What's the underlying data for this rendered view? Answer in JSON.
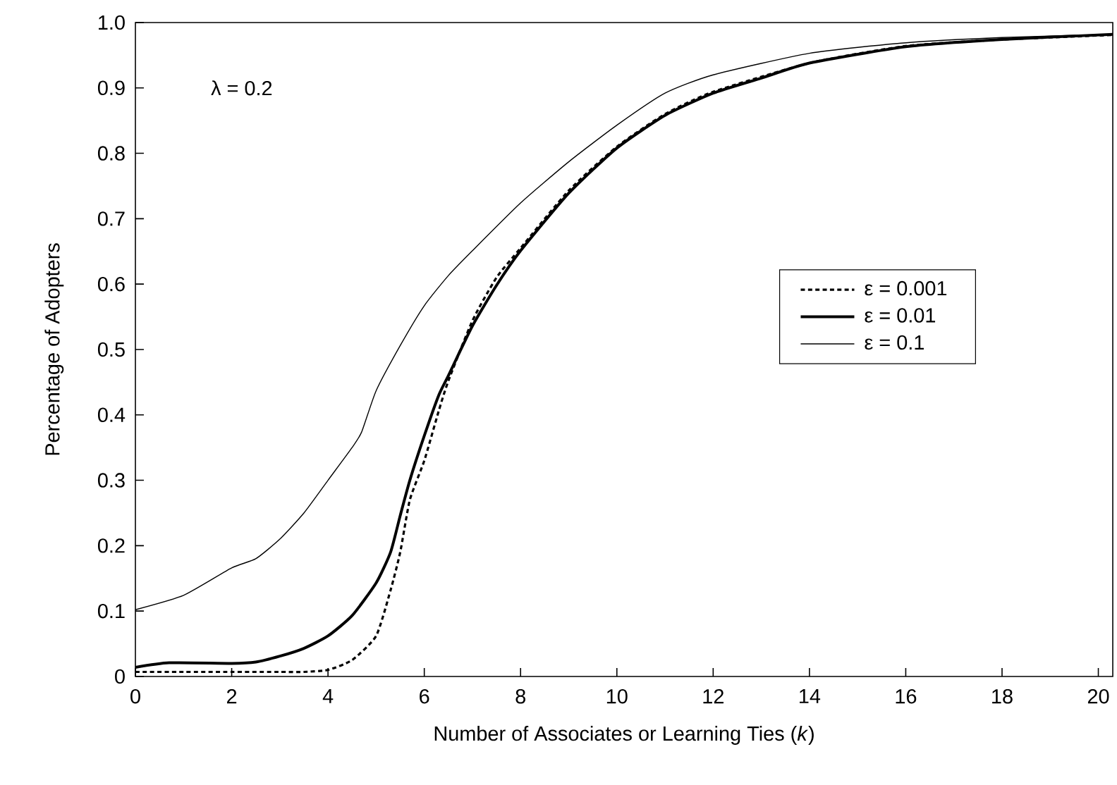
{
  "chart_data": {
    "type": "line",
    "xlabel": "Number of Associates or Learning Ties (*k*)",
    "ylabel": "Percentage of Adopters",
    "annotations": [
      "λ = 0.2"
    ],
    "xlim": [
      0,
      20.3
    ],
    "ylim": [
      0,
      1.0
    ],
    "xticks": [
      0,
      2,
      4,
      6,
      8,
      10,
      12,
      14,
      16,
      18,
      20
    ],
    "yticks": [
      0,
      0.1,
      0.2,
      0.3,
      0.4,
      0.5,
      0.6,
      0.7,
      0.8,
      0.9,
      {
        "value": 1.0,
        "label": "1.0"
      }
    ],
    "grid": false,
    "legend": "right",
    "series": [
      {
        "name": "ε = 0.001",
        "color": "#000000",
        "line_style": "dashed",
        "x": [
          0,
          1,
          2,
          3,
          3.5,
          4,
          4.5,
          5,
          5.3,
          5.5,
          5.7,
          6,
          6.3,
          6.5,
          7,
          7.5,
          8,
          9,
          10,
          11,
          12,
          14,
          16,
          18,
          20.3
        ],
        "values": [
          0.007,
          0.007,
          0.007,
          0.007,
          0.007,
          0.01,
          0.025,
          0.062,
          0.132,
          0.19,
          0.27,
          0.33,
          0.406,
          0.452,
          0.544,
          0.61,
          0.655,
          0.743,
          0.81,
          0.86,
          0.894,
          0.938,
          0.964,
          0.974,
          0.981
        ]
      },
      {
        "name": "ε = 0.01",
        "color": "#000000",
        "line_style": "solid",
        "x": [
          0,
          0.7,
          2,
          2.5,
          3,
          3.5,
          4,
          4.5,
          5,
          5.3,
          5.5,
          5.7,
          6,
          6.3,
          6.5,
          7,
          7.5,
          8,
          9,
          10,
          11,
          12,
          13,
          14,
          16,
          18,
          20.3
        ],
        "values": [
          0.014,
          0.021,
          0.02,
          0.022,
          0.031,
          0.043,
          0.062,
          0.093,
          0.143,
          0.19,
          0.246,
          0.3,
          0.368,
          0.43,
          0.46,
          0.536,
          0.598,
          0.651,
          0.739,
          0.808,
          0.858,
          0.892,
          0.915,
          0.938,
          0.963,
          0.974,
          0.982
        ]
      },
      {
        "name": "ε = 0.1",
        "color": "#000000",
        "line_style": "solid",
        "x": [
          0,
          1,
          2,
          2.5,
          3,
          3.5,
          4,
          4.5,
          4.7,
          5,
          5.5,
          6,
          6.5,
          7,
          8,
          9,
          10,
          11,
          12,
          14,
          16,
          18,
          20.3
        ],
        "values": [
          0.102,
          0.124,
          0.166,
          0.18,
          0.21,
          0.25,
          0.3,
          0.35,
          0.374,
          0.437,
          0.506,
          0.567,
          0.613,
          0.651,
          0.724,
          0.787,
          0.843,
          0.892,
          0.92,
          0.953,
          0.969,
          0.977,
          0.982
        ]
      }
    ]
  }
}
